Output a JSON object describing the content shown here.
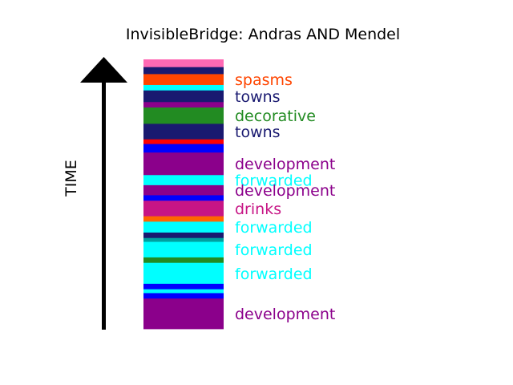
{
  "chart_data": {
    "type": "bar",
    "title": "InvisibleBridge: Andras AND Mendel",
    "ylabel": "TIME",
    "axis_direction": "upward arrow",
    "stack_order": "top-to-bottom",
    "segments": [
      {
        "color": "#ff69b4",
        "weight": 1.0
      },
      {
        "color": "#191970",
        "weight": 0.9
      },
      {
        "color": "#ff4500",
        "weight": 1.4
      },
      {
        "color": "#00ffff",
        "weight": 0.7
      },
      {
        "color": "#191970",
        "weight": 1.5
      },
      {
        "color": "#8b008b",
        "weight": 0.7
      },
      {
        "color": "#228b22",
        "weight": 2.1
      },
      {
        "color": "#191970",
        "weight": 2.0
      },
      {
        "color": "#ff0000",
        "weight": 0.6
      },
      {
        "color": "#0000ff",
        "weight": 1.1
      },
      {
        "color": "#8b008b",
        "weight": 2.9
      },
      {
        "color": "#00ffff",
        "weight": 1.3
      },
      {
        "color": "#8b008b",
        "weight": 1.3
      },
      {
        "color": "#0000ff",
        "weight": 0.7
      },
      {
        "color": "#c71585",
        "weight": 2.0
      },
      {
        "color": "#ff6600",
        "weight": 0.7
      },
      {
        "color": "#00ffff",
        "weight": 1.4
      },
      {
        "color": "#191970",
        "weight": 0.7
      },
      {
        "color": "#00a0a0",
        "weight": 0.5
      },
      {
        "color": "#00ffff",
        "weight": 2.0
      },
      {
        "color": "#228b22",
        "weight": 0.7
      },
      {
        "color": "#00ffff",
        "weight": 2.7
      },
      {
        "color": "#0000ff",
        "weight": 0.7
      },
      {
        "color": "#00ffff",
        "weight": 0.5
      },
      {
        "color": "#0000ff",
        "weight": 0.7
      },
      {
        "color": "#8b008b",
        "weight": 3.9
      }
    ],
    "labels": [
      {
        "text": "spasms",
        "color": "#ff4500",
        "segment": 2
      },
      {
        "text": "towns",
        "color": "#191970",
        "segment": 4
      },
      {
        "text": "decorative",
        "color": "#228b22",
        "segment": 6
      },
      {
        "text": "towns",
        "color": "#191970",
        "segment": 7
      },
      {
        "text": "development",
        "color": "#8b008b",
        "segment": 10
      },
      {
        "text": "forwarded",
        "color": "#00ffff",
        "segment": 11
      },
      {
        "text": "development",
        "color": "#8b008b",
        "segment": 12
      },
      {
        "text": "drinks",
        "color": "#c71585",
        "segment": 14
      },
      {
        "text": "forwarded",
        "color": "#00ffff",
        "segment": 16
      },
      {
        "text": "forwarded",
        "color": "#00ffff",
        "segment": 19
      },
      {
        "text": "forwarded",
        "color": "#00ffff",
        "segment": 21
      },
      {
        "text": "development",
        "color": "#8b008b",
        "segment": 25
      }
    ]
  }
}
